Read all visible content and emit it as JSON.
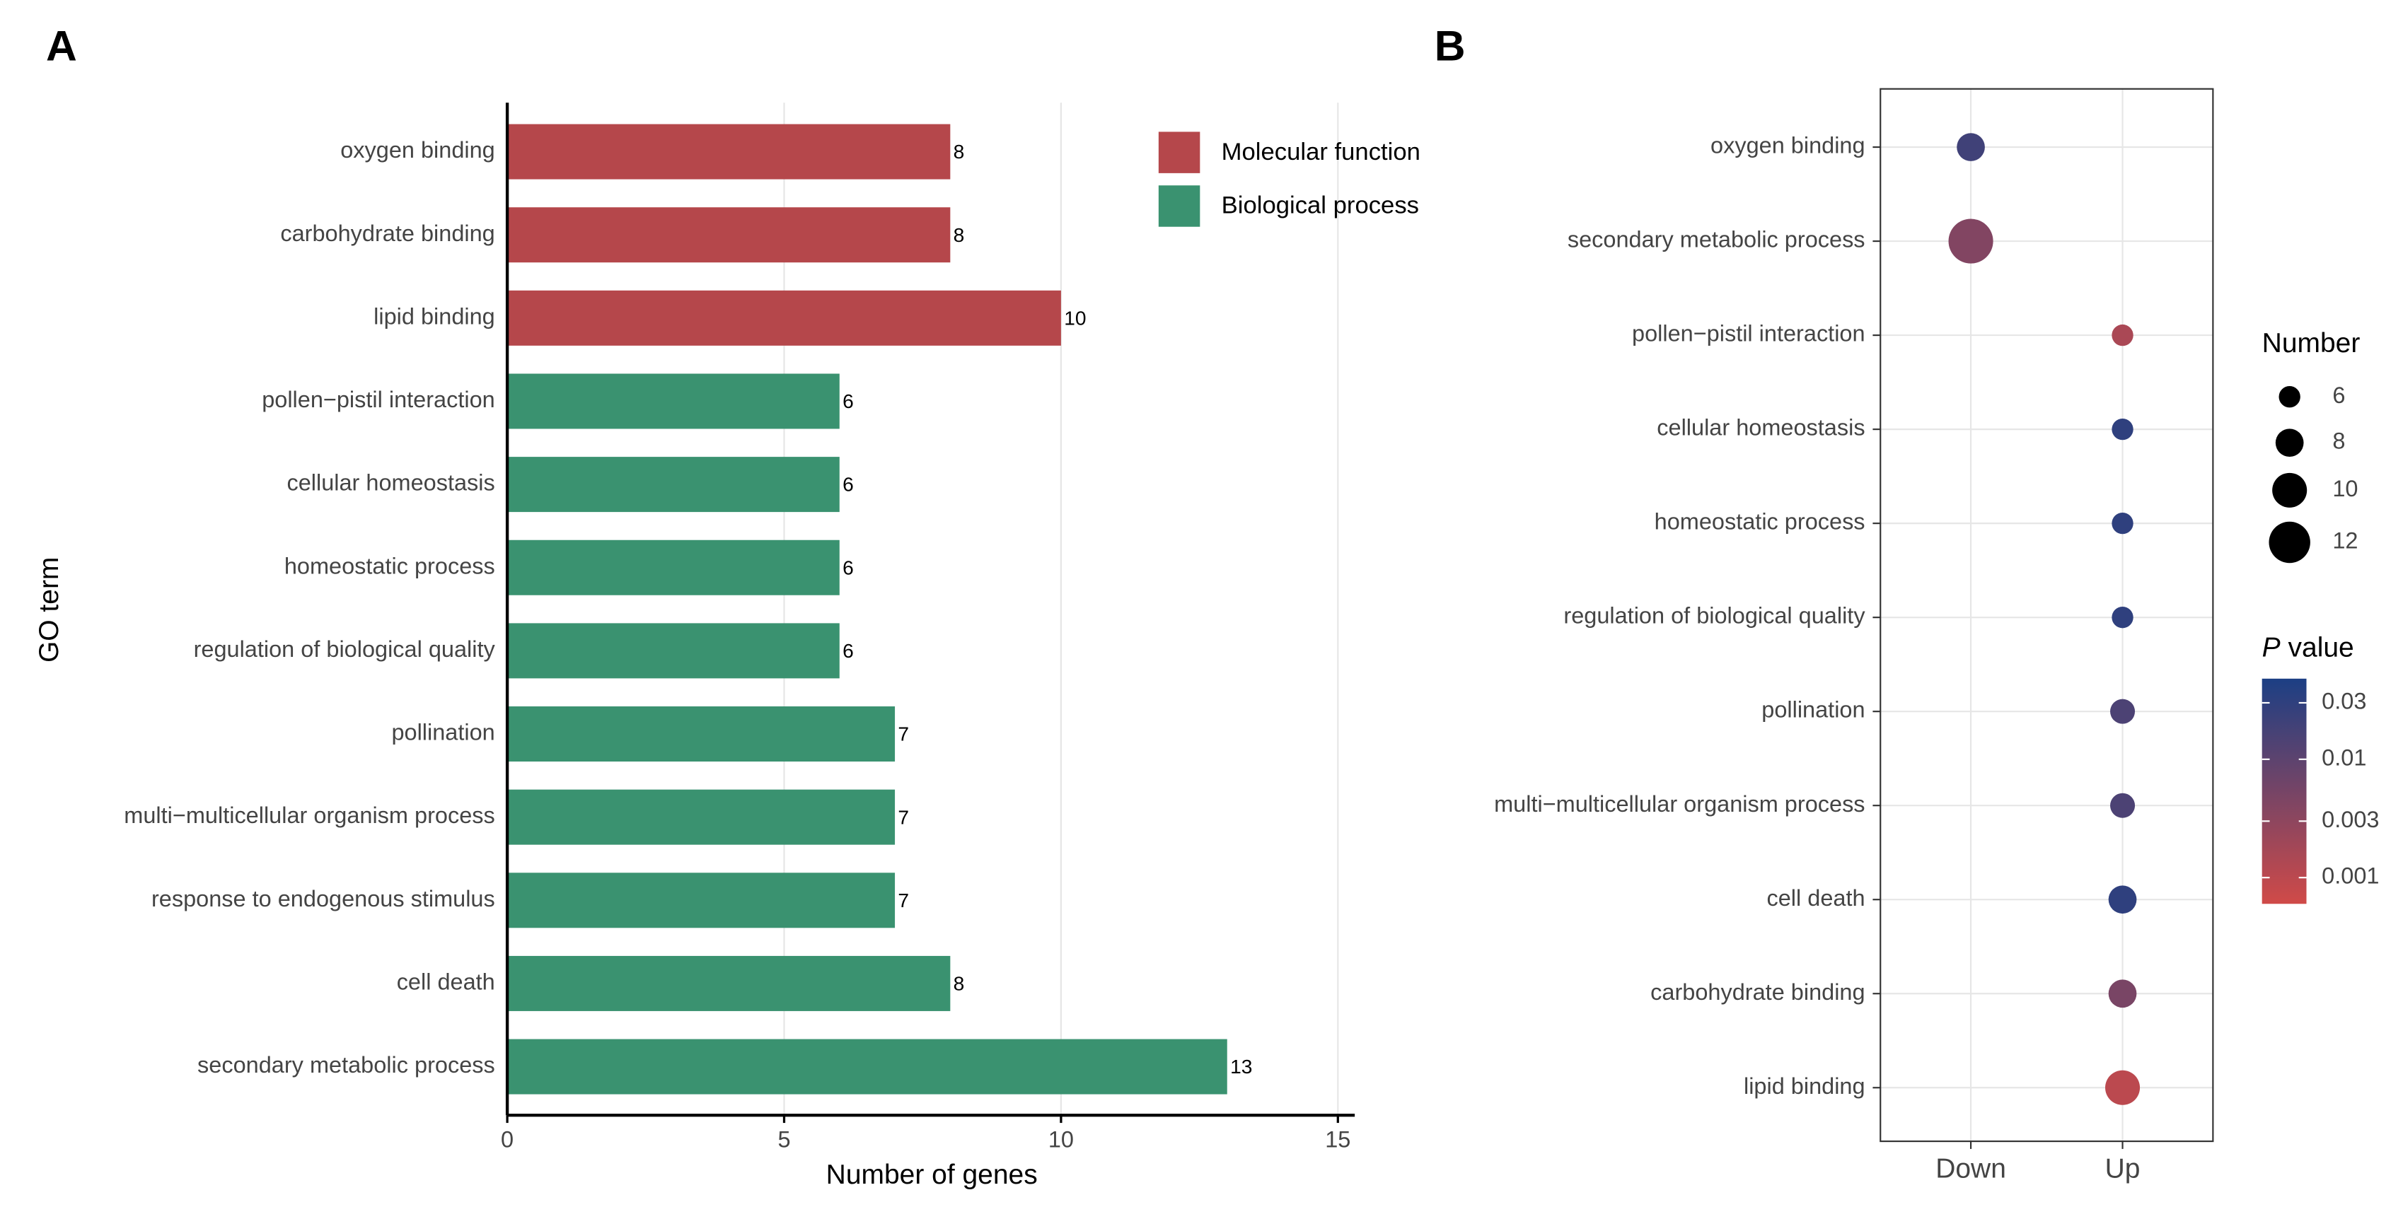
{
  "chart_data": [
    {
      "type": "bar",
      "panel": "A",
      "orientation": "horizontal",
      "categories": [
        "oxygen binding",
        "carbohydrate binding",
        "lipid binding",
        "pollen−pistil interaction",
        "cellular homeostasis",
        "homeostatic process",
        "regulation of biological quality",
        "pollination",
        "multi−multicellular organism process",
        "response to endogenous stimulus",
        "cell death",
        "secondary metabolic process"
      ],
      "series": [
        {
          "name": "Molecular function",
          "color": "#b5474b",
          "values": [
            8,
            8,
            10,
            null,
            null,
            null,
            null,
            null,
            null,
            null,
            null,
            null
          ]
        },
        {
          "name": "Biological process",
          "color": "#3a9270",
          "values": [
            null,
            null,
            null,
            6,
            6,
            6,
            6,
            7,
            7,
            7,
            8,
            13
          ]
        }
      ],
      "xlim": [
        0,
        15
      ],
      "xticks": [
        0,
        5,
        10,
        15
      ],
      "x_label": "Number of genes",
      "y_label": "GO term",
      "grid": true
    },
    {
      "type": "dot",
      "panel": "B",
      "categories": [
        "oxygen binding",
        "secondary metabolic process",
        "pollen−pistil interaction",
        "cellular homeostasis",
        "homeostatic process",
        "regulation of biological quality",
        "pollination",
        "multi−multicellular organism process",
        "cell death",
        "carbohydrate binding",
        "lipid binding"
      ],
      "x": [
        "Down",
        "Up"
      ],
      "groups": [
        "Down",
        "Down",
        "Up",
        "Up",
        "Up",
        "Up",
        "Up",
        "Up",
        "Up",
        "Up",
        "Up"
      ],
      "sizes": [
        8,
        13,
        6,
        6,
        6,
        6,
        7,
        7,
        8,
        8,
        10
      ],
      "p_values": [
        0.02,
        0.004,
        0.0015,
        0.03,
        0.03,
        0.03,
        0.015,
        0.015,
        0.03,
        0.005,
        0.001
      ],
      "size_legend_title": "Number",
      "size_legend": [
        6,
        8,
        10,
        12
      ],
      "color_legend_title": [
        "P",
        "value"
      ],
      "color_scale": {
        "log": true,
        "lim": [
          0.0006,
          0.048
        ],
        "ticks": [
          0.03,
          0.01,
          0.003,
          0.001
        ],
        "colors": [
          "#d04a48",
          "#1c3f84"
        ]
      },
      "grid": true
    }
  ]
}
